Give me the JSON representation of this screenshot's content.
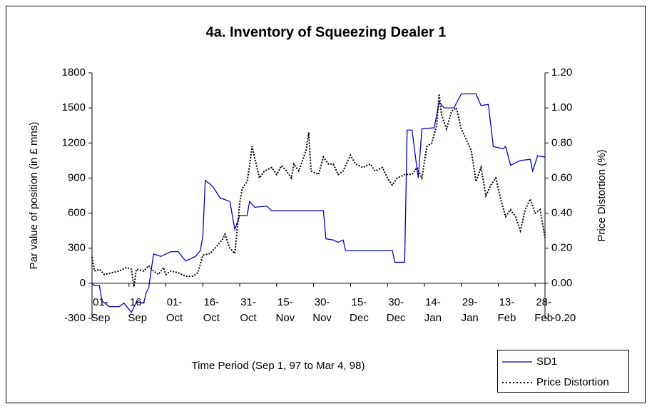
{
  "chart_data": {
    "type": "line",
    "title": "4a. Inventory of Squeezing Dealer 1",
    "xlabel": "Time Period (Sep 1, 97 to Mar 4, 98)",
    "ylabel": "Par value of position  (in £ mns)",
    "y2label": "Price Distortion (%)",
    "xlim": [
      0,
      184
    ],
    "xticks": [
      {
        "value": 0,
        "label": "01-\nSep"
      },
      {
        "value": 15,
        "label": "16-\nSep"
      },
      {
        "value": 30,
        "label": "01-\nOct"
      },
      {
        "value": 45,
        "label": "16-\nOct"
      },
      {
        "value": 60,
        "label": "31-\nOct"
      },
      {
        "value": 75,
        "label": "15-\nNov"
      },
      {
        "value": 90,
        "label": "30-\nNov"
      },
      {
        "value": 105,
        "label": "15-\nDec"
      },
      {
        "value": 120,
        "label": "30-\nDec"
      },
      {
        "value": 135,
        "label": "14-\nJan"
      },
      {
        "value": 150,
        "label": "29-\nJan"
      },
      {
        "value": 165,
        "label": "13-\nFeb"
      },
      {
        "value": 180,
        "label": "28-\nFeb"
      }
    ],
    "ylim": [
      -300,
      1800
    ],
    "yticks": [
      -300,
      0,
      300,
      600,
      900,
      1200,
      1500,
      1800
    ],
    "y2lim": [
      -0.2,
      1.2
    ],
    "y2ticks": [
      {
        "value": -0.2,
        "label": "-0.20"
      },
      {
        "value": 0,
        "label": "0.00"
      },
      {
        "value": 0.2,
        "label": "0.20"
      },
      {
        "value": 0.4,
        "label": "0.40"
      },
      {
        "value": 0.6,
        "label": "0.60"
      },
      {
        "value": 0.8,
        "label": "0.80"
      },
      {
        "value": 1.0,
        "label": "1.00"
      },
      {
        "value": 1.2,
        "label": "1.20"
      }
    ],
    "series": [
      {
        "name": "SD1",
        "color": "#0000cc",
        "dash": "solid",
        "axis": "y",
        "x": [
          0,
          1,
          3,
          4,
          7,
          11,
          13,
          16,
          18,
          21,
          22,
          23,
          25,
          28,
          32,
          35,
          38,
          42,
          44,
          45,
          46,
          49,
          52,
          56,
          58,
          60,
          63,
          64,
          66,
          71,
          73,
          94,
          95,
          98,
          100,
          102,
          103,
          122,
          123,
          127,
          128,
          130,
          132.5,
          134,
          139,
          141,
          143,
          147,
          150,
          156,
          158,
          161,
          163,
          167,
          168,
          170,
          174,
          178,
          179,
          181,
          184
        ],
        "values": [
          0,
          -20,
          -20,
          -150,
          -200,
          -200,
          -170,
          -250,
          -160,
          -170,
          -80,
          -40,
          250,
          230,
          270,
          270,
          190,
          230,
          280,
          400,
          880,
          830,
          730,
          700,
          460,
          580,
          580,
          700,
          650,
          660,
          620,
          620,
          380,
          370,
          350,
          370,
          280,
          280,
          180,
          180,
          1310,
          1310,
          900,
          1320,
          1330,
          1550,
          1500,
          1500,
          1620,
          1620,
          1520,
          1530,
          1170,
          1150,
          1170,
          1010,
          1050,
          1060,
          960,
          1090,
          1080
        ]
      },
      {
        "name": "Price Distortion",
        "color": "#000000",
        "dash": "dotted",
        "axis": "y2",
        "x": [
          0,
          1,
          3,
          5,
          8,
          11,
          14,
          16,
          17,
          18,
          21,
          23,
          25,
          27,
          29,
          30,
          32,
          35,
          38,
          41,
          43,
          45,
          48,
          50,
          53,
          54,
          56,
          58,
          60,
          61,
          63,
          64,
          65,
          66,
          68,
          70,
          73,
          75,
          77,
          79,
          81,
          82,
          84,
          86,
          87,
          88,
          89,
          92,
          94,
          96,
          98,
          100,
          102,
          104,
          105,
          107,
          110,
          113,
          115,
          118,
          120,
          122,
          124,
          127,
          130,
          132,
          134,
          136,
          138,
          140,
          141,
          142,
          144,
          146,
          148,
          150,
          152,
          154,
          156,
          158,
          160,
          162,
          164,
          166,
          168,
          170,
          172,
          174,
          176,
          178,
          180,
          182,
          184
        ],
        "values": [
          0.15,
          0.07,
          0.08,
          0.05,
          0.06,
          0.07,
          0.09,
          0.08,
          -0.02,
          0.08,
          0.07,
          0.1,
          0.07,
          0.05,
          0.09,
          0.05,
          0.07,
          0.06,
          0.04,
          0.04,
          0.06,
          0.16,
          0.17,
          0.2,
          0.25,
          0.28,
          0.2,
          0.17,
          0.46,
          0.54,
          0.58,
          0.67,
          0.78,
          0.72,
          0.6,
          0.64,
          0.66,
          0.62,
          0.67,
          0.64,
          0.6,
          0.68,
          0.64,
          0.72,
          0.76,
          0.86,
          0.64,
          0.62,
          0.72,
          0.68,
          0.68,
          0.62,
          0.64,
          0.7,
          0.73,
          0.68,
          0.66,
          0.68,
          0.64,
          0.66,
          0.6,
          0.56,
          0.6,
          0.62,
          0.62,
          0.66,
          0.6,
          0.78,
          0.8,
          0.9,
          1.08,
          0.96,
          0.88,
          0.98,
          1.0,
          0.88,
          0.82,
          0.76,
          0.58,
          0.66,
          0.5,
          0.56,
          0.6,
          0.48,
          0.38,
          0.42,
          0.38,
          0.3,
          0.42,
          0.48,
          0.4,
          0.42,
          0.26
        ]
      }
    ]
  }
}
